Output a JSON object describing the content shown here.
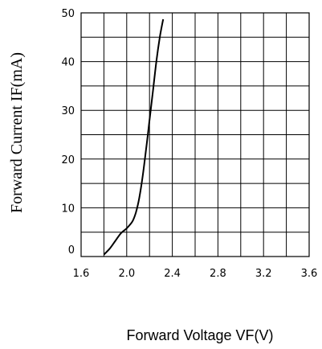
{
  "chart_data": {
    "type": "line",
    "xlabel": "Forward Voltage VF(V)",
    "ylabel": "Forward Current IF(mA)",
    "xlim": [
      1.6,
      3.6
    ],
    "ylim": [
      0,
      50
    ],
    "x_ticks": [
      "1.6",
      "2.0",
      "2.4",
      "2.8",
      "3.2",
      "3.6"
    ],
    "y_ticks": [
      "0",
      "10",
      "20",
      "30",
      "40",
      "50"
    ],
    "x_grid_step": 0.2,
    "y_grid_step": 5,
    "grid": true,
    "series": [
      {
        "x": [
          1.8,
          1.85,
          1.9,
          1.95,
          2.0,
          2.05,
          2.08,
          2.11,
          2.14,
          2.17,
          2.2,
          2.23,
          2.26,
          2.29,
          2.32
        ],
        "values": [
          0.4,
          1.6,
          3.2,
          4.8,
          5.8,
          7.2,
          9.0,
          12.0,
          16.5,
          22.0,
          28.0,
          34.0,
          40.0,
          45.0,
          48.7
        ]
      }
    ]
  }
}
